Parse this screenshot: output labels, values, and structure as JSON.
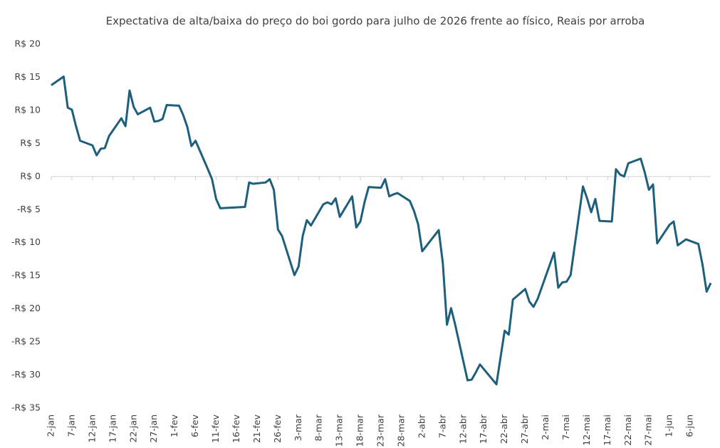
{
  "chart_data": {
    "type": "line",
    "title": "Expectativa de alta/baixa do preço do boi gordo para julho de 2026 frente ao físico, Reais por arroba",
    "x": [
      2,
      5,
      6,
      7,
      8,
      9,
      12,
      13,
      14,
      15,
      16,
      19,
      20,
      21,
      22,
      23,
      26,
      27,
      28,
      29,
      30,
      33,
      34,
      35,
      36,
      37,
      40,
      41,
      42,
      43,
      49,
      50,
      51,
      54,
      55,
      56,
      57,
      58,
      61,
      62,
      63,
      64,
      65,
      68,
      69,
      70,
      71,
      72,
      75,
      76,
      77,
      78,
      79,
      82,
      83,
      84,
      85,
      86,
      89,
      90,
      91,
      92,
      96,
      97,
      98,
      99,
      100,
      103,
      104,
      105,
      106,
      110,
      112,
      113,
      114,
      117,
      118,
      119,
      120,
      124,
      125,
      126,
      127,
      128,
      131,
      132,
      133,
      134,
      135,
      138,
      139,
      140,
      141,
      142,
      145,
      146,
      147,
      148,
      149,
      152,
      153,
      154,
      156,
      159,
      160,
      161,
      162
    ],
    "series": [
      {
        "name": "Expectativa",
        "color": "#1d5f7c",
        "values": [
          13.8,
          15.1,
          10.4,
          10.1,
          7.6,
          5.4,
          4.7,
          3.2,
          4.2,
          4.3,
          6.1,
          8.8,
          7.6,
          13.0,
          10.5,
          9.4,
          10.4,
          8.3,
          8.4,
          8.7,
          10.8,
          10.7,
          9.3,
          7.5,
          4.6,
          5.4,
          1.1,
          -0.4,
          -3.4,
          -4.8,
          -4.6,
          -0.9,
          -1.1,
          -0.9,
          -0.4,
          -2.0,
          -8.0,
          -9.0,
          -14.9,
          -13.6,
          -9.0,
          -6.6,
          -7.4,
          -4.2,
          -3.9,
          -4.2,
          -3.3,
          -6.1,
          -3.0,
          -7.7,
          -6.8,
          -3.9,
          -1.6,
          -1.7,
          -0.4,
          -3.0,
          -2.7,
          -2.5,
          -3.7,
          -5.2,
          -7.2,
          -11.3,
          -8.1,
          -13.1,
          -22.4,
          -19.9,
          -22.4,
          -30.8,
          -30.7,
          -29.6,
          -28.4,
          -31.4,
          -23.3,
          -23.9,
          -18.6,
          -17.0,
          -18.9,
          -19.7,
          -18.5,
          -11.5,
          -16.8,
          -16.0,
          -15.9,
          -14.9,
          -1.5,
          -3.3,
          -5.4,
          -3.4,
          -6.7,
          -6.8,
          1.1,
          0.3,
          0.0,
          2.0,
          2.7,
          0.6,
          -2.0,
          -1.2,
          -10.1,
          -7.3,
          -6.8,
          -10.4,
          -9.5,
          -10.2,
          -13.3,
          -17.4,
          -16.1
        ]
      }
    ],
    "xlim": [
      2,
      162
    ],
    "xticks": [
      {
        "value": 2,
        "label": "2-jan"
      },
      {
        "value": 7,
        "label": "7-jan"
      },
      {
        "value": 12,
        "label": "12-jan"
      },
      {
        "value": 17,
        "label": "17-jan"
      },
      {
        "value": 22,
        "label": "22-jan"
      },
      {
        "value": 27,
        "label": "27-jan"
      },
      {
        "value": 32,
        "label": "1-fev"
      },
      {
        "value": 37,
        "label": "6-fev"
      },
      {
        "value": 42,
        "label": "11-fev"
      },
      {
        "value": 47,
        "label": "16-fev"
      },
      {
        "value": 52,
        "label": "21-fev"
      },
      {
        "value": 57,
        "label": "26-fev"
      },
      {
        "value": 62,
        "label": "3-mar"
      },
      {
        "value": 67,
        "label": "8-mar"
      },
      {
        "value": 72,
        "label": "13-mar"
      },
      {
        "value": 77,
        "label": "18-mar"
      },
      {
        "value": 82,
        "label": "23-mar"
      },
      {
        "value": 87,
        "label": "28-mar"
      },
      {
        "value": 92,
        "label": "2-abr"
      },
      {
        "value": 97,
        "label": "7-abr"
      },
      {
        "value": 102,
        "label": "12-abr"
      },
      {
        "value": 107,
        "label": "17-abr"
      },
      {
        "value": 112,
        "label": "22-abr"
      },
      {
        "value": 117,
        "label": "27-abr"
      },
      {
        "value": 122,
        "label": "2-mai"
      },
      {
        "value": 127,
        "label": "7-mai"
      },
      {
        "value": 132,
        "label": "12-mai"
      },
      {
        "value": 137,
        "label": "17-mai"
      },
      {
        "value": 142,
        "label": "22-mai"
      },
      {
        "value": 147,
        "label": "27-mai"
      },
      {
        "value": 152,
        "label": "1-jun"
      },
      {
        "value": 157,
        "label": "6-jun"
      }
    ],
    "ylim": [
      -35,
      20
    ],
    "yticks": [
      {
        "value": 20,
        "label": "R$ 20"
      },
      {
        "value": 15,
        "label": "R$ 15"
      },
      {
        "value": 10,
        "label": "R$ 10"
      },
      {
        "value": 5,
        "label": "R$ 5"
      },
      {
        "value": 0,
        "label": "R$ 0"
      },
      {
        "value": -5,
        "label": "-R$ 5"
      },
      {
        "value": -10,
        "label": "-R$ 10"
      },
      {
        "value": -15,
        "label": "-R$ 15"
      },
      {
        "value": -20,
        "label": "-R$ 20"
      },
      {
        "value": -25,
        "label": "-R$ 25"
      },
      {
        "value": -30,
        "label": "-R$ 30"
      },
      {
        "value": -35,
        "label": "-R$ 35"
      }
    ]
  }
}
